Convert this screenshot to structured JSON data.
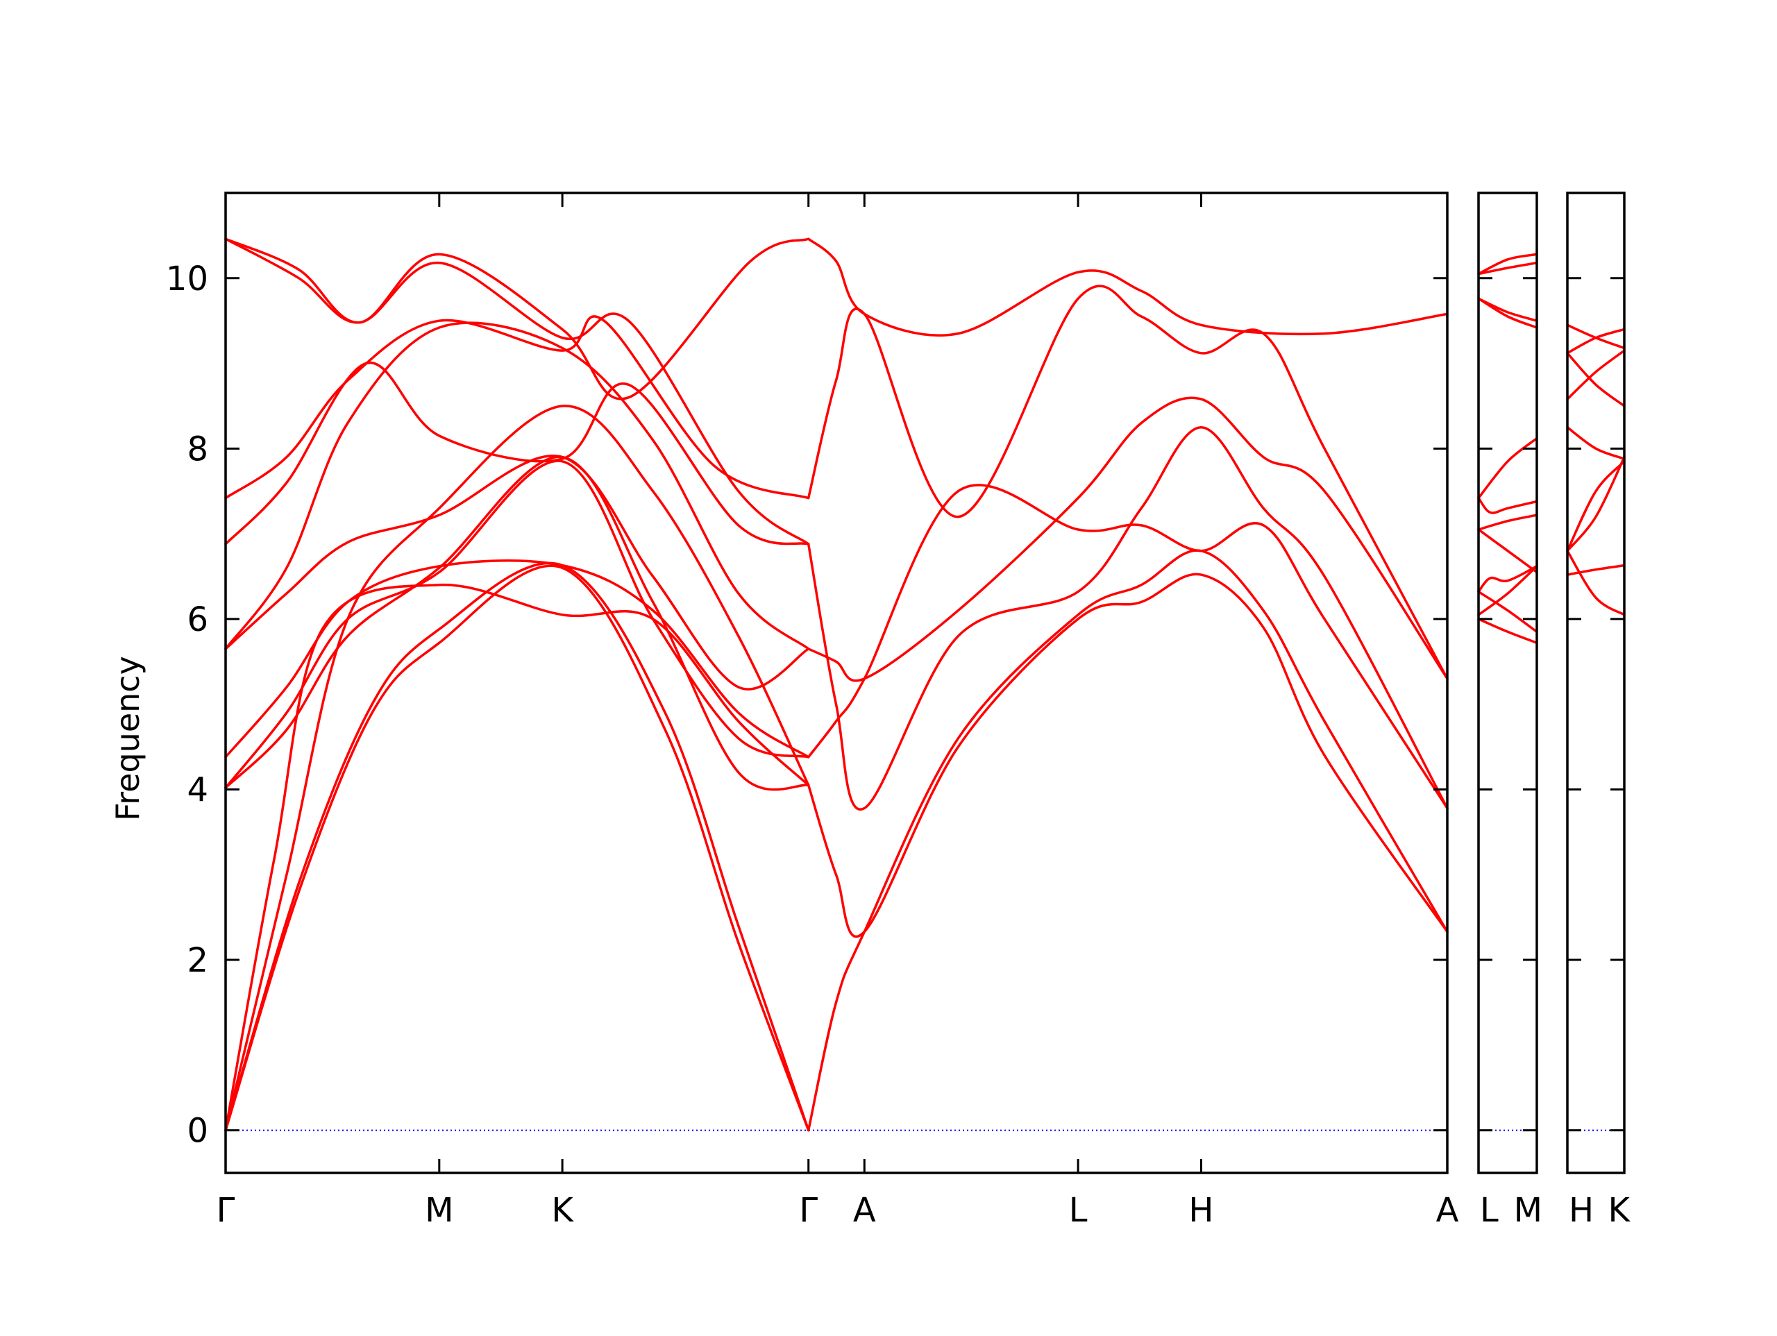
{
  "chart_data": {
    "type": "line",
    "ylabel": "Frequency",
    "ylim": [
      -0.5,
      11
    ],
    "yticks": [
      0,
      2,
      4,
      6,
      8,
      10
    ],
    "grid": false,
    "colors": {
      "bands": "#ff0000",
      "zero_line": "#0000ff"
    },
    "panels": [
      {
        "ticks": [
          {
            "label": "Γ",
            "x": 0.0
          },
          {
            "label": "M",
            "x": 0.175
          },
          {
            "label": "K",
            "x": 0.2758
          },
          {
            "label": "Γ",
            "x": 0.4774
          },
          {
            "label": "A",
            "x": 0.5232
          },
          {
            "label": "L",
            "x": 0.6982
          },
          {
            "label": "H",
            "x": 0.799
          },
          {
            "label": "A",
            "x": 1.0006
          }
        ],
        "series": [
          {
            "x": [
              0.0,
              0.06,
              0.12,
              0.175,
              0.2758,
              0.36,
              0.42,
              0.4774
            ],
            "y": [
              0.0,
              2.8,
              4.9,
              5.72,
              6.6,
              4.7,
              2.2,
              0.0
            ]
          },
          {
            "x": [
              0.0,
              0.06,
              0.12,
              0.175,
              0.2758,
              0.36,
              0.42,
              0.4774
            ],
            "y": [
              0.0,
              2.9,
              5.0,
              5.88,
              6.63,
              4.9,
              2.4,
              0.0
            ]
          },
          {
            "x": [
              0.0,
              0.04,
              0.08,
              0.175,
              0.2758,
              0.35,
              0.42,
              0.4774
            ],
            "y": [
              0.0,
              3.2,
              5.9,
              6.4,
              6.05,
              6.0,
              4.8,
              4.05
            ]
          },
          {
            "x": [
              0.0,
              0.05,
              0.1,
              0.175,
              0.2758,
              0.35,
              0.42,
              0.4774
            ],
            "y": [
              4.02,
              4.7,
              5.8,
              6.6,
              7.9,
              6.2,
              4.2,
              4.05
            ]
          },
          {
            "x": [
              0.0,
              0.05,
              0.1,
              0.175,
              0.2758,
              0.35,
              0.42,
              0.4774
            ],
            "y": [
              4.02,
              4.9,
              6.0,
              6.55,
              7.85,
              6.0,
              4.6,
              4.38
            ]
          },
          {
            "x": [
              0.0,
              0.05,
              0.1,
              0.175,
              0.2758,
              0.35,
              0.42,
              0.4774
            ],
            "y": [
              4.38,
              5.2,
              6.2,
              6.62,
              6.63,
              6.1,
              4.9,
              4.38
            ]
          },
          {
            "x": [
              0.0,
              0.05,
              0.1,
              0.175,
              0.2758,
              0.35,
              0.42,
              0.4774
            ],
            "y": [
              5.65,
              6.3,
              6.9,
              7.22,
              7.9,
              6.5,
              5.2,
              5.65
            ]
          },
          {
            "x": [
              0.0,
              0.05,
              0.1,
              0.175,
              0.2758,
              0.35,
              0.42,
              0.4774
            ],
            "y": [
              5.65,
              6.6,
              8.3,
              9.42,
              9.18,
              8.1,
              6.3,
              5.65
            ]
          },
          {
            "x": [
              0.0,
              0.05,
              0.115,
              0.175,
              0.2758,
              0.33,
              0.42,
              0.4774
            ],
            "y": [
              6.88,
              7.6,
              9.0,
              8.15,
              7.88,
              8.75,
              7.1,
              6.88
            ]
          },
          {
            "x": [
              0.0,
              0.05,
              0.1,
              0.175,
              0.2758,
              0.31,
              0.4,
              0.4774
            ],
            "y": [
              7.42,
              7.9,
              8.8,
              9.5,
              9.15,
              9.5,
              7.8,
              7.42
            ]
          },
          {
            "x": [
              0.0,
              0.05,
              0.1,
              0.175,
              0.2758,
              0.35,
              0.42,
              0.4774
            ],
            "y": [
              0.0,
              3.0,
              6.0,
              7.3,
              8.5,
              7.5,
              5.8,
              4.05
            ]
          },
          {
            "x": [
              0.0,
              0.06,
              0.11,
              0.175,
              0.2758,
              0.33,
              0.42,
              0.4774
            ],
            "y": [
              10.46,
              10.0,
              9.48,
              10.18,
              9.3,
              9.5,
              7.5,
              6.88
            ]
          },
          {
            "x": [
              0.0,
              0.06,
              0.11,
              0.175,
              0.2758,
              0.33,
              0.43,
              0.4774
            ],
            "y": [
              10.46,
              10.1,
              9.48,
              10.28,
              9.4,
              8.6,
              10.2,
              10.46
            ]
          },
          {
            "x": [
              0.4774,
              0.5,
              0.5232,
              0.6,
              0.6982,
              0.75,
              0.799,
              0.9,
              1.0006
            ],
            "y": [
              10.46,
              10.2,
              9.58,
              9.35,
              10.07,
              9.85,
              9.45,
              9.35,
              9.58
            ]
          },
          {
            "x": [
              0.4774,
              0.5,
              0.5232,
              0.6,
              0.6982,
              0.75,
              0.799,
              0.85,
              0.9,
              1.0006
            ],
            "y": [
              7.42,
              8.8,
              9.58,
              7.2,
              9.76,
              9.55,
              9.12,
              9.35,
              8.0,
              5.3
            ]
          },
          {
            "x": [
              0.4774,
              0.5,
              0.5232,
              0.6,
              0.6982,
              0.75,
              0.799,
              0.85,
              0.9,
              1.0006
            ],
            "y": [
              5.65,
              5.5,
              5.3,
              6.1,
              7.42,
              8.3,
              8.58,
              7.9,
              7.5,
              5.3
            ]
          },
          {
            "x": [
              0.4774,
              0.5,
              0.5232,
              0.6,
              0.6982,
              0.75,
              0.799,
              0.85,
              0.9,
              1.0006
            ],
            "y": [
              4.38,
              4.8,
              5.3,
              7.5,
              7.05,
              7.1,
              6.8,
              7.1,
              6.0,
              3.78
            ]
          },
          {
            "x": [
              0.4774,
              0.5,
              0.5232,
              0.6,
              0.6982,
              0.75,
              0.799,
              0.85,
              0.9,
              1.0006
            ],
            "y": [
              6.88,
              5.0,
              3.78,
              5.8,
              6.32,
              7.3,
              8.25,
              7.3,
              6.5,
              3.78
            ]
          },
          {
            "x": [
              0.4774,
              0.5,
              0.5232,
              0.6,
              0.6982,
              0.75,
              0.799,
              0.85,
              0.9,
              1.0006
            ],
            "y": [
              4.05,
              3.0,
              2.33,
              4.5,
              6.0,
              6.2,
              6.52,
              5.9,
              4.4,
              2.33
            ]
          },
          {
            "x": [
              0.4774,
              0.5,
              0.5232,
              0.6,
              0.6982,
              0.75,
              0.799,
              0.85,
              0.9,
              1.0006
            ],
            "y": [
              0.0,
              1.5,
              2.33,
              4.6,
              6.05,
              6.4,
              6.8,
              6.1,
              4.8,
              2.33
            ]
          }
        ]
      },
      {
        "ticks": [
          {
            "label": "L",
            "x": 0.0
          },
          {
            "label": "M",
            "x": 1.0
          }
        ],
        "series": [
          {
            "x": [
              0.0,
              0.5,
              1.0
            ],
            "y": [
              10.05,
              10.22,
              10.28
            ]
          },
          {
            "x": [
              0.0,
              0.5,
              1.0
            ],
            "y": [
              10.05,
              10.12,
              10.18
            ]
          },
          {
            "x": [
              0.0,
              0.5,
              1.0
            ],
            "y": [
              9.76,
              9.6,
              9.5
            ]
          },
          {
            "x": [
              0.0,
              0.5,
              1.0
            ],
            "y": [
              9.76,
              9.55,
              9.42
            ]
          },
          {
            "x": [
              0.0,
              0.5,
              1.0
            ],
            "y": [
              7.42,
              7.85,
              8.12
            ]
          },
          {
            "x": [
              0.0,
              0.2,
              0.5,
              1.0
            ],
            "y": [
              7.42,
              7.25,
              7.3,
              7.38
            ]
          },
          {
            "x": [
              0.0,
              0.5,
              1.0
            ],
            "y": [
              7.05,
              7.15,
              7.22
            ]
          },
          {
            "x": [
              0.0,
              0.5,
              1.0
            ],
            "y": [
              7.05,
              6.8,
              6.55
            ]
          },
          {
            "x": [
              0.0,
              0.2,
              0.5,
              1.0
            ],
            "y": [
              6.32,
              6.48,
              6.45,
              6.62
            ]
          },
          {
            "x": [
              0.0,
              0.5,
              1.0
            ],
            "y": [
              6.32,
              6.1,
              5.85
            ]
          },
          {
            "x": [
              0.0,
              0.5,
              1.0
            ],
            "y": [
              6.05,
              6.3,
              6.62
            ]
          },
          {
            "x": [
              0.0,
              0.5,
              1.0
            ],
            "y": [
              6.0,
              5.85,
              5.72
            ]
          }
        ]
      },
      {
        "ticks": [
          {
            "label": "H",
            "x": 0.0
          },
          {
            "label": "K",
            "x": 1.0
          }
        ],
        "series": [
          {
            "x": [
              0.0,
              0.5,
              1.0
            ],
            "y": [
              9.45,
              9.3,
              9.18
            ]
          },
          {
            "x": [
              0.0,
              0.5,
              1.0
            ],
            "y": [
              9.12,
              9.3,
              9.4
            ]
          },
          {
            "x": [
              0.0,
              0.5,
              1.0
            ],
            "y": [
              9.12,
              8.75,
              8.5
            ]
          },
          {
            "x": [
              0.0,
              0.5,
              1.0
            ],
            "y": [
              8.58,
              8.9,
              9.15
            ]
          },
          {
            "x": [
              0.0,
              0.5,
              1.0
            ],
            "y": [
              8.25,
              8.0,
              7.88
            ]
          },
          {
            "x": [
              0.0,
              0.5,
              1.0
            ],
            "y": [
              6.8,
              7.2,
              7.9
            ]
          },
          {
            "x": [
              0.0,
              0.5,
              1.0
            ],
            "y": [
              6.8,
              7.5,
              7.85
            ]
          },
          {
            "x": [
              0.0,
              0.5,
              1.0
            ],
            "y": [
              6.8,
              6.25,
              6.05
            ]
          },
          {
            "x": [
              0.0,
              0.5,
              1.0
            ],
            "y": [
              6.52,
              6.58,
              6.63
            ]
          }
        ]
      }
    ]
  }
}
